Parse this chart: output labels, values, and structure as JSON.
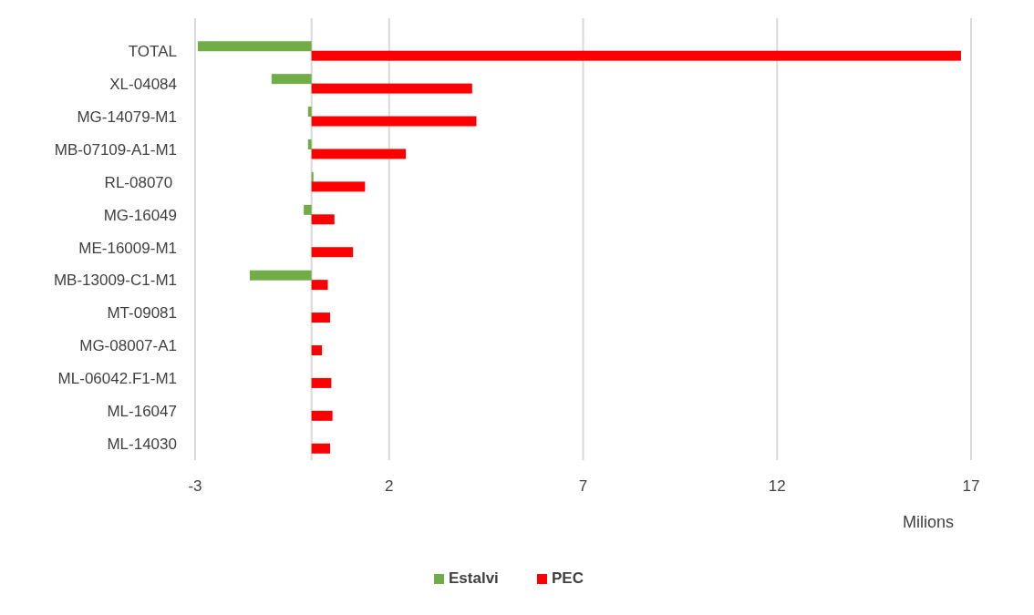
{
  "chart_data": {
    "type": "bar",
    "orientation": "horizontal",
    "xlabel": "Milions",
    "categories": [
      "TOTAL",
      "XL-04084",
      "MG-14079-M1",
      "MB-07109-A1-M1",
      "RL-08070 ",
      "MG-16049",
      "ME-16009-M1",
      "MB-13009-C1-M1",
      "MT-09081",
      "MG-08007-A1",
      "ML-06042.F1-M1",
      "ML-16047",
      "ML-14030"
    ],
    "series": [
      {
        "name": "Estalvi",
        "color": "#70ad47",
        "values": [
          -2.93,
          -1.03,
          -0.09,
          -0.09,
          0.05,
          -0.2,
          null,
          -1.59,
          null,
          null,
          null,
          null,
          null
        ]
      },
      {
        "name": "PEC",
        "color": "#ff0000",
        "values": [
          16.74,
          4.14,
          4.25,
          2.43,
          1.38,
          0.59,
          1.07,
          0.42,
          0.48,
          0.27,
          0.51,
          0.54,
          0.48
        ]
      }
    ],
    "xlim": [
      -3,
      17
    ],
    "xticks": [
      -3,
      2,
      7,
      12,
      17
    ],
    "grid": "x",
    "legend": "bottom"
  }
}
